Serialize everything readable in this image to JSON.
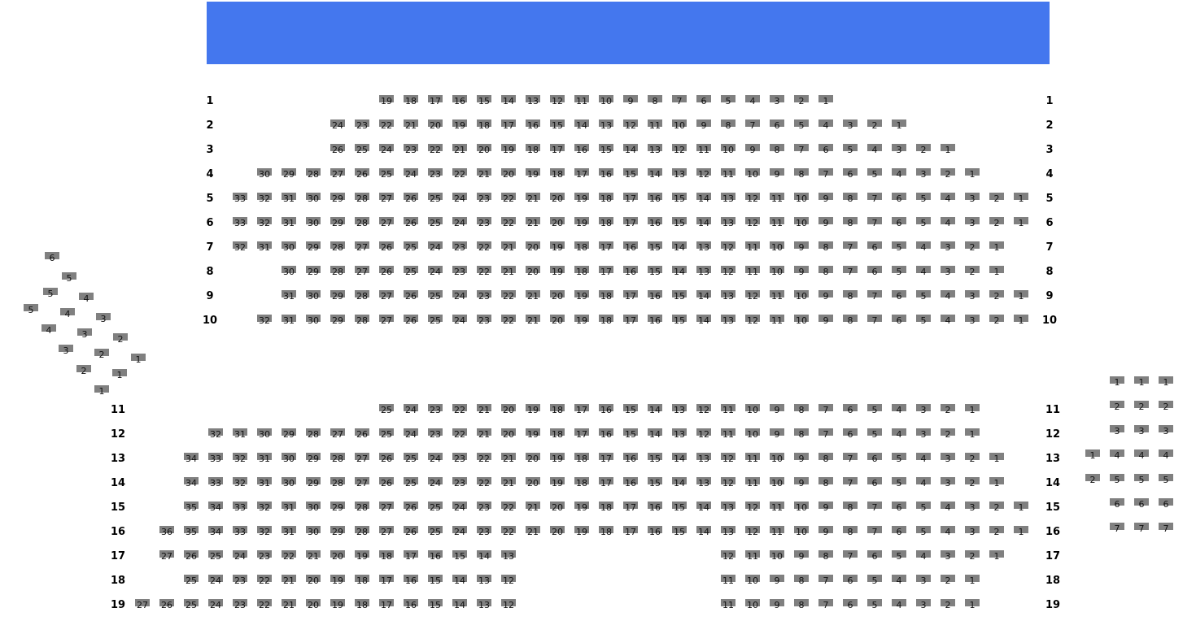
{
  "colors": {
    "stage": "#4477ee",
    "seat": "#808080",
    "seat_text": "#111111"
  },
  "stage": {
    "label": ""
  },
  "main_rows": [
    {
      "label": "1",
      "blocks": [
        {
          "from": 19,
          "to": 1
        }
      ]
    },
    {
      "label": "2",
      "blocks": [
        {
          "from": 24,
          "to": 1
        }
      ]
    },
    {
      "label": "3",
      "blocks": [
        {
          "from": 26,
          "to": 1
        }
      ]
    },
    {
      "label": "4",
      "blocks": [
        {
          "from": 30,
          "to": 1
        }
      ]
    },
    {
      "label": "5",
      "blocks": [
        {
          "from": 33,
          "to": 1
        }
      ]
    },
    {
      "label": "6",
      "blocks": [
        {
          "from": 33,
          "to": 1
        }
      ]
    },
    {
      "label": "7",
      "blocks": [
        {
          "from": 32,
          "to": 1
        }
      ]
    },
    {
      "label": "8",
      "blocks": [
        {
          "from": 30,
          "to": 1
        }
      ]
    },
    {
      "label": "9",
      "blocks": [
        {
          "from": 31,
          "to": 1
        }
      ]
    },
    {
      "label": "10",
      "blocks": [
        {
          "from": 32,
          "to": 1
        }
      ]
    },
    {
      "label": "11",
      "blocks": [
        {
          "from": 25,
          "to": 1
        }
      ]
    },
    {
      "label": "12",
      "blocks": [
        {
          "from": 32,
          "to": 1
        }
      ]
    },
    {
      "label": "13",
      "blocks": [
        {
          "from": 34,
          "to": 1
        }
      ]
    },
    {
      "label": "14",
      "blocks": [
        {
          "from": 34,
          "to": 1
        }
      ]
    },
    {
      "label": "15",
      "blocks": [
        {
          "from": 35,
          "to": 1
        }
      ]
    },
    {
      "label": "16",
      "blocks": [
        {
          "from": 36,
          "to": 1
        }
      ]
    },
    {
      "label": "17",
      "blocks": [
        {
          "from": 27,
          "to": 13
        },
        {
          "from": 12,
          "to": 1
        }
      ]
    },
    {
      "label": "18",
      "blocks": [
        {
          "from": 25,
          "to": 12
        },
        {
          "from": 11,
          "to": 1
        }
      ]
    },
    {
      "label": "19",
      "blocks": [
        {
          "from": 27,
          "to": 12
        },
        {
          "from": 11,
          "to": 1
        }
      ]
    }
  ],
  "left_side_block": [
    "6",
    "5",
    "5",
    "4",
    "5",
    "4",
    "3",
    "4",
    "3",
    "2",
    "3",
    "2",
    "1",
    "2",
    "1",
    "1"
  ],
  "right_side_block": {
    "columns": [
      [
        "1",
        "2"
      ],
      [
        "1",
        "2",
        "3",
        "4",
        "5",
        "6",
        "7"
      ],
      [
        "1",
        "2",
        "3",
        "4",
        "5",
        "6",
        "7"
      ],
      [
        "1",
        "2",
        "3",
        "4",
        "5",
        "6",
        "7"
      ]
    ]
  }
}
